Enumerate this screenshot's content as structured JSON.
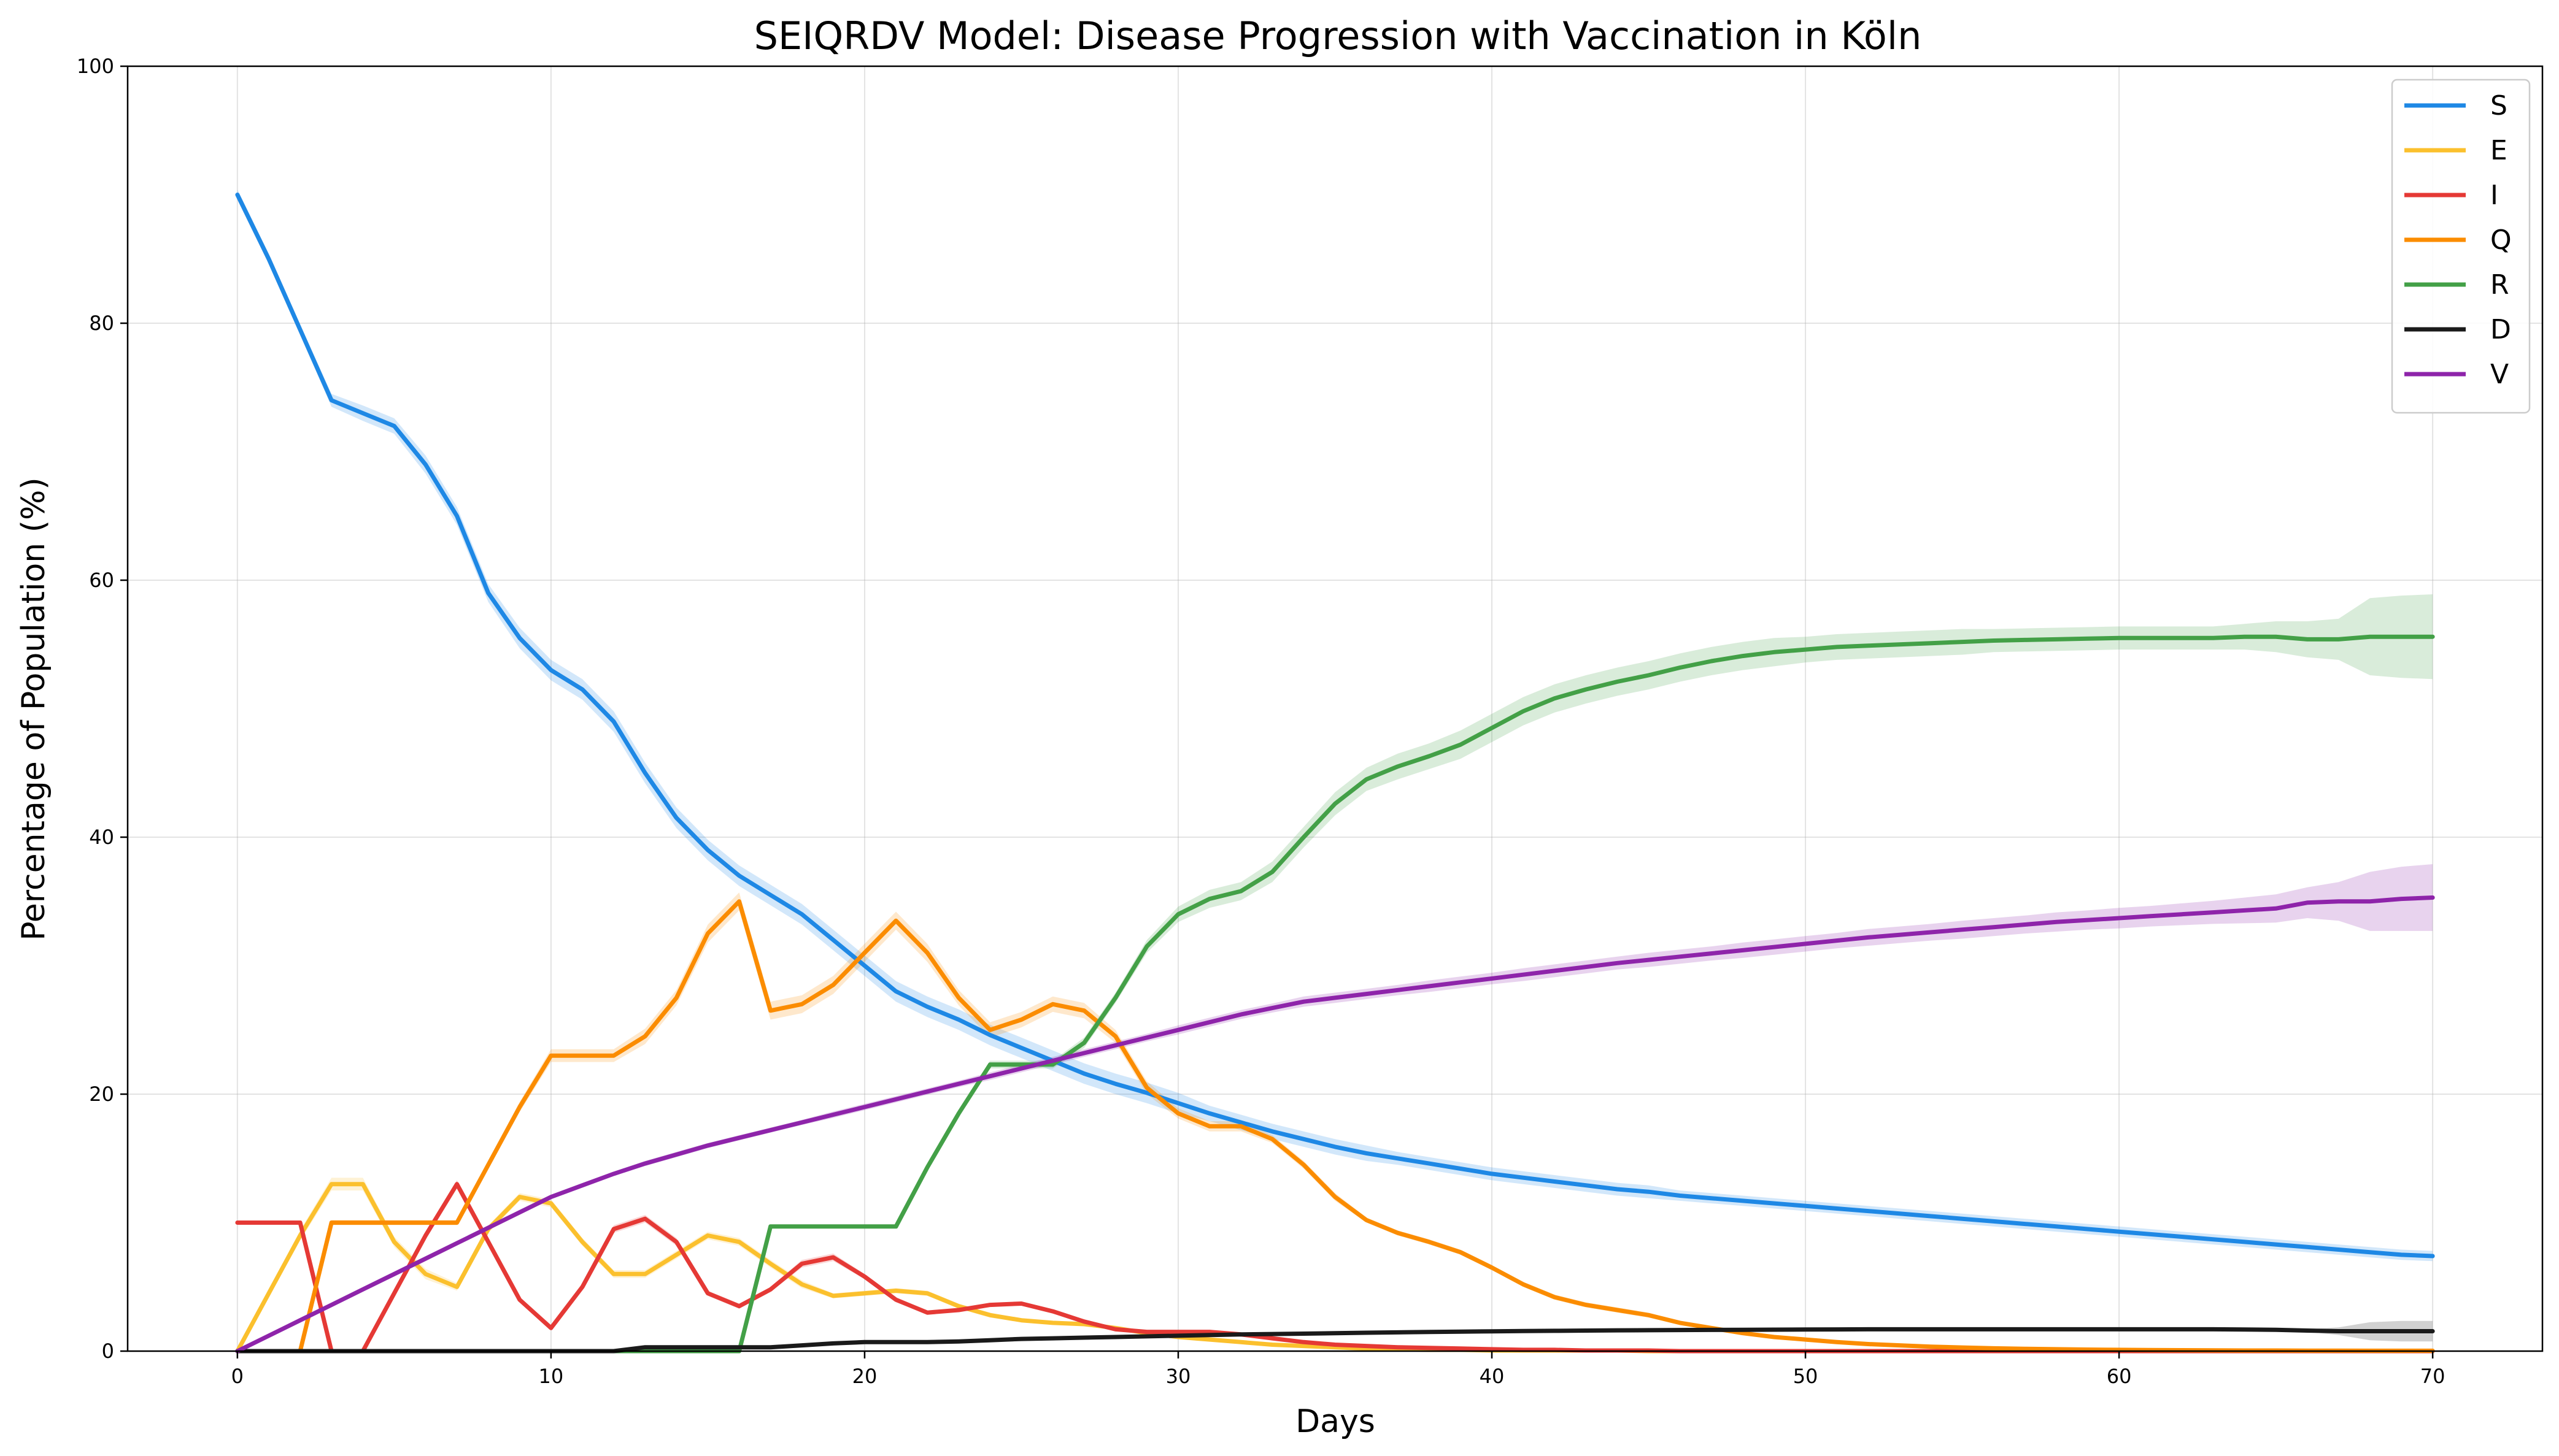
{
  "chart_data": {
    "type": "line",
    "title": "SEIQRDV Model: Disease Progression with Vaccination in Köln",
    "xlabel": "Days",
    "ylabel": "Percentage of Population (%)",
    "xlim": [
      -3.5,
      73.5
    ],
    "ylim": [
      0,
      100
    ],
    "xticks": [
      0,
      10,
      20,
      30,
      40,
      50,
      60,
      70
    ],
    "yticks": [
      0,
      20,
      40,
      60,
      80,
      100
    ],
    "grid": true,
    "legend_position": "top-right",
    "x": [
      0,
      1,
      2,
      3,
      4,
      5,
      6,
      7,
      8,
      9,
      10,
      11,
      12,
      13,
      14,
      15,
      16,
      17,
      18,
      19,
      20,
      21,
      22,
      23,
      24,
      25,
      26,
      27,
      28,
      29,
      30,
      31,
      32,
      33,
      34,
      35,
      36,
      37,
      38,
      39,
      40,
      41,
      42,
      43,
      44,
      45,
      46,
      47,
      48,
      49,
      50,
      51,
      52,
      53,
      54,
      55,
      56,
      57,
      58,
      59,
      60,
      61,
      62,
      63,
      64,
      65,
      66,
      67,
      68,
      69,
      70
    ],
    "series": [
      {
        "name": "S",
        "color": "#1e88e5",
        "values": [
          90,
          85,
          79.5,
          74,
          73,
          72,
          69,
          65,
          59,
          55.5,
          53,
          51.5,
          49,
          45,
          41.5,
          39,
          37,
          35.5,
          34,
          32,
          30,
          28,
          26.8,
          25.8,
          24.6,
          23.6,
          22.6,
          21.6,
          20.8,
          20.1,
          19.3,
          18.5,
          17.8,
          17.1,
          16.5,
          15.9,
          15.4,
          15.0,
          14.6,
          14.2,
          13.8,
          13.5,
          13.2,
          12.9,
          12.6,
          12.4,
          12.1,
          11.9,
          11.7,
          11.5,
          11.3,
          11.1,
          10.9,
          10.7,
          10.5,
          10.3,
          10.1,
          9.9,
          9.7,
          9.5,
          9.3,
          9.1,
          8.9,
          8.7,
          8.5,
          8.3,
          8.1,
          7.9,
          7.7,
          7.5,
          7.4
        ],
        "band": [
          0.4,
          0.4,
          0.4,
          0.5,
          0.6,
          0.6,
          0.7,
          0.7,
          0.7,
          0.8,
          0.8,
          0.8,
          0.8,
          0.8,
          0.8,
          0.8,
          0.8,
          0.8,
          0.8,
          0.8,
          0.8,
          0.8,
          0.8,
          0.8,
          0.8,
          0.8,
          0.8,
          0.8,
          0.8,
          0.8,
          0.8,
          0.6,
          0.6,
          0.6,
          0.6,
          0.6,
          0.6,
          0.5,
          0.5,
          0.5,
          0.5,
          0.5,
          0.5,
          0.5,
          0.5,
          0.5,
          0.4,
          0.4,
          0.4,
          0.4,
          0.4,
          0.4,
          0.4,
          0.4,
          0.4,
          0.4,
          0.4,
          0.4,
          0.4,
          0.4,
          0.4,
          0.4,
          0.4,
          0.4,
          0.4,
          0.4,
          0.4,
          0.4,
          0.4,
          0.4,
          0.4
        ]
      },
      {
        "name": "E",
        "color": "#fbc02d",
        "values": [
          0,
          4.5,
          9,
          13,
          13,
          8.5,
          6,
          5,
          9.5,
          12,
          11.5,
          8.5,
          6,
          6,
          7.5,
          9,
          8.5,
          6.8,
          5.2,
          4.3,
          4.5,
          4.7,
          4.5,
          3.5,
          2.8,
          2.4,
          2.2,
          2.1,
          1.8,
          1.4,
          1.1,
          0.9,
          0.7,
          0.5,
          0.4,
          0.3,
          0.2,
          0.15,
          0.1,
          0.1,
          0.05,
          0.05,
          0.05,
          0.05,
          0.05,
          0,
          0,
          0,
          0,
          0,
          0,
          0,
          0,
          0,
          0,
          0,
          0,
          0,
          0,
          0,
          0,
          0,
          0,
          0,
          0,
          0,
          0,
          0,
          0,
          0,
          0
        ],
        "band": [
          0,
          0.3,
          0.4,
          0.5,
          0.5,
          0.4,
          0.4,
          0.3,
          0.3,
          0.3,
          0.3,
          0.3,
          0.3,
          0.3,
          0.3,
          0.3,
          0.3,
          0.3,
          0.3,
          0.2,
          0.2,
          0.2,
          0.2,
          0.2,
          0.2,
          0.1,
          0.1,
          0.1,
          0.1,
          0.1,
          0.1,
          0.1,
          0.1,
          0.1,
          0.1,
          0.1,
          0.1,
          0.1,
          0.1,
          0.1,
          0.1,
          0.1,
          0.1,
          0.1,
          0.1,
          0.1,
          0.1,
          0.1,
          0.1,
          0.1,
          0.1,
          0.1,
          0.1,
          0.1,
          0.1,
          0.1,
          0.1,
          0.1,
          0.1,
          0.1,
          0.1,
          0.1,
          0.1,
          0.1,
          0.1,
          0.1,
          0.1,
          0.1,
          0.1,
          0.1,
          0.1
        ]
      },
      {
        "name": "I",
        "color": "#e53935",
        "values": [
          10,
          10,
          10,
          0,
          0,
          4.5,
          9,
          13,
          8.5,
          4,
          1.8,
          5,
          9.5,
          10.3,
          8.5,
          4.5,
          3.5,
          4.8,
          6.8,
          7.3,
          5.8,
          4,
          3,
          3.2,
          3.6,
          3.7,
          3.1,
          2.3,
          1.7,
          1.5,
          1.5,
          1.5,
          1.3,
          1.0,
          0.7,
          0.5,
          0.4,
          0.3,
          0.25,
          0.2,
          0.15,
          0.1,
          0.1,
          0.05,
          0.05,
          0.05,
          0,
          0,
          0,
          0,
          0,
          0,
          0,
          0,
          0,
          0,
          0,
          0,
          0,
          0,
          0,
          0,
          0,
          0,
          0,
          0,
          0,
          0,
          0,
          0,
          0
        ],
        "band": [
          0.1,
          0.1,
          0.1,
          0.1,
          0.1,
          0.2,
          0.2,
          0.3,
          0.3,
          0.2,
          0.2,
          0.2,
          0.3,
          0.3,
          0.3,
          0.2,
          0.2,
          0.2,
          0.3,
          0.3,
          0.2,
          0.2,
          0.1,
          0.1,
          0.1,
          0.1,
          0.1,
          0.1,
          0.1,
          0.1,
          0.1,
          0.1,
          0.1,
          0.1,
          0.1,
          0.1,
          0.1,
          0.1,
          0.1,
          0.1,
          0.1,
          0.1,
          0.1,
          0.1,
          0.1,
          0.1,
          0.1,
          0.1,
          0.1,
          0.1,
          0.1,
          0.1,
          0.1,
          0.1,
          0.1,
          0.1,
          0.1,
          0.1,
          0.1,
          0.1,
          0.1,
          0.1,
          0.1,
          0.1,
          0.1,
          0.1,
          0.1,
          0.1,
          0.1,
          0.1,
          0.1
        ]
      },
      {
        "name": "Q",
        "color": "#fb8c00",
        "values": [
          0,
          0,
          0,
          10,
          10,
          10,
          10,
          10,
          14.5,
          19,
          23,
          23,
          23,
          24.5,
          27.5,
          32.5,
          35,
          26.5,
          27,
          28.5,
          31,
          33.5,
          31,
          27.5,
          25,
          25.8,
          27,
          26.5,
          24.5,
          20.5,
          18.5,
          17.5,
          17.5,
          16.5,
          14.5,
          12,
          10.2,
          9.2,
          8.5,
          7.7,
          6.5,
          5.2,
          4.2,
          3.6,
          3.2,
          2.8,
          2.2,
          1.8,
          1.4,
          1.1,
          0.9,
          0.7,
          0.55,
          0.45,
          0.35,
          0.28,
          0.22,
          0.18,
          0.15,
          0.12,
          0.1,
          0.08,
          0.07,
          0.06,
          0.05,
          0.05,
          0.04,
          0.04,
          0.03,
          0.03,
          0.03
        ],
        "band": [
          0,
          0,
          0,
          0.2,
          0.2,
          0.2,
          0.2,
          0.2,
          0.3,
          0.4,
          0.5,
          0.5,
          0.5,
          0.6,
          0.6,
          0.7,
          0.7,
          0.7,
          0.7,
          0.7,
          0.7,
          0.7,
          0.7,
          0.6,
          0.6,
          0.6,
          0.6,
          0.6,
          0.5,
          0.5,
          0.4,
          0.4,
          0.4,
          0.3,
          0.3,
          0.3,
          0.2,
          0.2,
          0.2,
          0.2,
          0.2,
          0.2,
          0.2,
          0.2,
          0.2,
          0.2,
          0.1,
          0.1,
          0.1,
          0.1,
          0.1,
          0.1,
          0.1,
          0.1,
          0.1,
          0.1,
          0.1,
          0.1,
          0.1,
          0.1,
          0.1,
          0.1,
          0.1,
          0.1,
          0.1,
          0.1,
          0.1,
          0.1,
          0.1,
          0.1,
          0.1
        ]
      },
      {
        "name": "R",
        "color": "#43a047",
        "values": [
          0,
          0,
          0,
          0,
          0,
          0,
          0,
          0,
          0,
          0,
          0,
          0,
          0,
          0,
          0,
          0,
          0,
          9.7,
          9.7,
          9.7,
          9.7,
          9.7,
          14.3,
          18.5,
          22.3,
          22.3,
          22.3,
          24,
          27.5,
          31.5,
          34,
          35.2,
          35.8,
          37.3,
          40,
          42.6,
          44.5,
          45.5,
          46.3,
          47.2,
          48.5,
          49.8,
          50.8,
          51.5,
          52.1,
          52.6,
          53.2,
          53.7,
          54.1,
          54.4,
          54.6,
          54.8,
          54.9,
          55.0,
          55.1,
          55.2,
          55.3,
          55.35,
          55.4,
          55.45,
          55.5,
          55.5,
          55.5,
          55.5,
          55.6,
          55.6,
          55.4,
          55.4,
          55.6,
          55.6,
          55.6
        ],
        "band": [
          0,
          0,
          0,
          0,
          0,
          0,
          0,
          0,
          0,
          0,
          0,
          0,
          0,
          0,
          0,
          0,
          0,
          0.1,
          0.1,
          0.1,
          0.1,
          0.1,
          0.2,
          0.2,
          0.3,
          0.3,
          0.3,
          0.4,
          0.4,
          0.5,
          0.6,
          0.7,
          0.7,
          0.8,
          0.8,
          0.9,
          0.9,
          1.0,
          1.0,
          1.1,
          1.1,
          1.1,
          1.1,
          1.1,
          1.1,
          1.1,
          1.1,
          1.1,
          1.1,
          1.1,
          1.0,
          1.0,
          1.0,
          1.0,
          1.0,
          1.0,
          0.9,
          0.9,
          0.9,
          0.9,
          0.9,
          0.9,
          0.9,
          0.9,
          1.0,
          1.2,
          1.4,
          1.6,
          3.0,
          3.2,
          3.3
        ]
      },
      {
        "name": "D",
        "color": "#1a1a1a",
        "values": [
          0,
          0,
          0,
          0,
          0,
          0,
          0,
          0,
          0,
          0,
          0,
          0,
          0,
          0.3,
          0.3,
          0.3,
          0.3,
          0.3,
          0.45,
          0.6,
          0.7,
          0.7,
          0.7,
          0.75,
          0.85,
          0.95,
          1.0,
          1.05,
          1.1,
          1.15,
          1.2,
          1.25,
          1.3,
          1.33,
          1.36,
          1.4,
          1.43,
          1.46,
          1.49,
          1.52,
          1.54,
          1.56,
          1.58,
          1.6,
          1.62,
          1.63,
          1.64,
          1.65,
          1.66,
          1.67,
          1.68,
          1.69,
          1.7,
          1.7,
          1.7,
          1.7,
          1.7,
          1.7,
          1.7,
          1.7,
          1.7,
          1.7,
          1.7,
          1.7,
          1.68,
          1.66,
          1.6,
          1.55,
          1.55,
          1.55,
          1.55
        ],
        "band": [
          0,
          0,
          0,
          0,
          0,
          0,
          0,
          0,
          0,
          0,
          0,
          0,
          0,
          0.05,
          0.05,
          0.05,
          0.05,
          0.05,
          0.05,
          0.05,
          0.05,
          0.05,
          0.05,
          0.05,
          0.05,
          0.05,
          0.05,
          0.05,
          0.05,
          0.05,
          0.05,
          0.05,
          0.05,
          0.05,
          0.05,
          0.05,
          0.05,
          0.05,
          0.05,
          0.05,
          0.05,
          0.05,
          0.05,
          0.05,
          0.05,
          0.05,
          0.05,
          0.05,
          0.05,
          0.05,
          0.05,
          0.05,
          0.05,
          0.05,
          0.05,
          0.05,
          0.05,
          0.05,
          0.05,
          0.05,
          0.05,
          0.05,
          0.05,
          0.05,
          0.05,
          0.1,
          0.1,
          0.3,
          0.7,
          0.8,
          0.8
        ]
      },
      {
        "name": "V",
        "color": "#8e24aa",
        "values": [
          0,
          1.2,
          2.4,
          3.6,
          4.8,
          6.0,
          7.2,
          8.4,
          9.6,
          10.8,
          12.0,
          12.9,
          13.8,
          14.6,
          15.3,
          16.0,
          16.6,
          17.2,
          17.8,
          18.4,
          19.0,
          19.6,
          20.2,
          20.8,
          21.4,
          22.0,
          22.6,
          23.2,
          23.8,
          24.4,
          25.0,
          25.6,
          26.2,
          26.7,
          27.2,
          27.5,
          27.8,
          28.1,
          28.4,
          28.7,
          29.0,
          29.3,
          29.6,
          29.9,
          30.2,
          30.45,
          30.7,
          30.95,
          31.2,
          31.45,
          31.7,
          31.95,
          32.2,
          32.4,
          32.6,
          32.8,
          33.0,
          33.2,
          33.4,
          33.55,
          33.7,
          33.85,
          34.0,
          34.15,
          34.3,
          34.45,
          34.9,
          35.0,
          35.0,
          35.2,
          35.3
        ],
        "band": [
          0,
          0.1,
          0.1,
          0.1,
          0.1,
          0.1,
          0.1,
          0.1,
          0.1,
          0.15,
          0.15,
          0.15,
          0.15,
          0.2,
          0.2,
          0.2,
          0.2,
          0.2,
          0.2,
          0.25,
          0.25,
          0.25,
          0.25,
          0.25,
          0.3,
          0.3,
          0.3,
          0.3,
          0.3,
          0.3,
          0.35,
          0.35,
          0.35,
          0.35,
          0.4,
          0.4,
          0.4,
          0.4,
          0.45,
          0.45,
          0.45,
          0.5,
          0.5,
          0.5,
          0.5,
          0.55,
          0.55,
          0.55,
          0.6,
          0.6,
          0.6,
          0.6,
          0.65,
          0.65,
          0.65,
          0.7,
          0.7,
          0.7,
          0.75,
          0.75,
          0.8,
          0.8,
          0.85,
          0.9,
          1.0,
          1.1,
          1.2,
          1.5,
          2.3,
          2.5,
          2.6
        ]
      }
    ]
  }
}
